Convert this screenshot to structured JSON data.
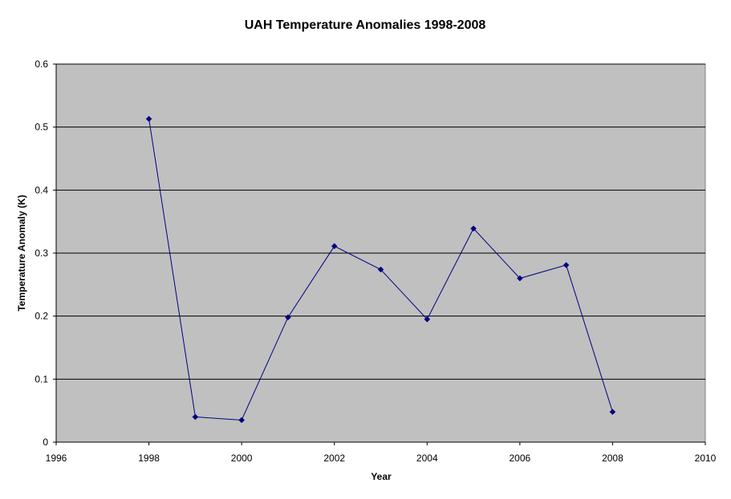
{
  "chart_data": {
    "type": "scatter",
    "title": "UAH Temperature Anomalies 1998-2008",
    "xlabel": "Year",
    "ylabel": "Temperature Anomaly (K)",
    "xlim": [
      1996,
      2010
    ],
    "ylim": [
      0,
      0.6
    ],
    "x_ticks": [
      "1996",
      "1998",
      "2000",
      "2002",
      "2004",
      "2006",
      "2008",
      "2010"
    ],
    "y_ticks": [
      "0",
      "0.1",
      "0.2",
      "0.3",
      "0.4",
      "0.5",
      "0.6"
    ],
    "grid": "horizontal",
    "plot_background": "#c0c0c0",
    "series": [
      {
        "color": "#000080",
        "marker": "diamond",
        "x": [
          1998,
          1999,
          2000,
          2001,
          2002,
          2003,
          2004,
          2005,
          2006,
          2007,
          2008
        ],
        "y": [
          0.513,
          0.04,
          0.035,
          0.198,
          0.311,
          0.274,
          0.195,
          0.339,
          0.26,
          0.281,
          0.048
        ]
      }
    ]
  }
}
